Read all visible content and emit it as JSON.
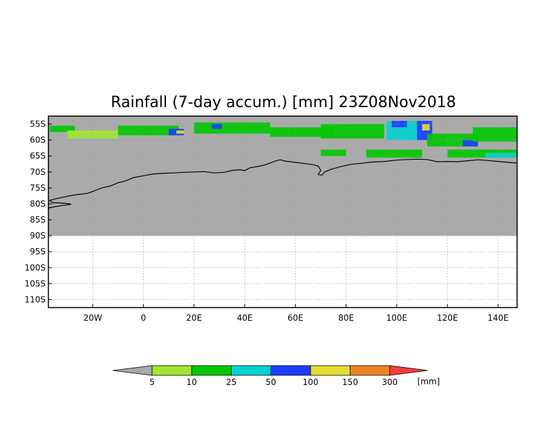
{
  "title": "Rainfall (7-day accum.) [mm] 23Z08Nov2018",
  "map": {
    "lon_range": [
      -37.5,
      147.5
    ],
    "lat_range": [
      -112.5,
      -52.5
    ],
    "data_lat_limit": -90,
    "lat_ticks": [
      {
        "lat": -55,
        "label": "55S"
      },
      {
        "lat": -60,
        "label": "60S"
      },
      {
        "lat": -65,
        "label": "65S"
      },
      {
        "lat": -70,
        "label": "70S"
      },
      {
        "lat": -75,
        "label": "75S"
      },
      {
        "lat": -80,
        "label": "80S"
      },
      {
        "lat": -85,
        "label": "85S"
      },
      {
        "lat": -90,
        "label": "90S"
      },
      {
        "lat": -95,
        "label": "95S"
      },
      {
        "lat": -100,
        "label": "100S"
      },
      {
        "lat": -105,
        "label": "105S"
      },
      {
        "lat": -110,
        "label": "110S"
      }
    ],
    "lon_ticks": [
      {
        "lon": -20,
        "label": "20W"
      },
      {
        "lon": 0,
        "label": "0"
      },
      {
        "lon": 20,
        "label": "20E"
      },
      {
        "lon": 40,
        "label": "40E"
      },
      {
        "lon": 60,
        "label": "60E"
      },
      {
        "lon": 80,
        "label": "80E"
      },
      {
        "lon": 100,
        "label": "100E"
      },
      {
        "lon": 120,
        "label": "120E"
      },
      {
        "lon": 140,
        "label": "140E"
      }
    ],
    "grid": true,
    "coastline": [
      [
        -37.5,
        -81.3
      ],
      [
        -35,
        -80.9
      ],
      [
        -32,
        -80.5
      ],
      [
        -30,
        -80.3
      ],
      [
        -28.5,
        -80.1
      ],
      [
        -30,
        -79.9
      ],
      [
        -33,
        -79.7
      ],
      [
        -36,
        -79.6
      ],
      [
        -37,
        -78.9
      ],
      [
        -34,
        -78.3
      ],
      [
        -31,
        -77.8
      ],
      [
        -28,
        -77.3
      ],
      [
        -25,
        -77
      ],
      [
        -22,
        -76.7
      ],
      [
        -19,
        -75.8
      ],
      [
        -16,
        -74.9
      ],
      [
        -13,
        -74.4
      ],
      [
        -10,
        -73.4
      ],
      [
        -7,
        -72.8
      ],
      [
        -4,
        -71.8
      ],
      [
        0,
        -71.2
      ],
      [
        4,
        -70.6
      ],
      [
        8,
        -70.4
      ],
      [
        12,
        -70.3
      ],
      [
        16,
        -70.1
      ],
      [
        20,
        -70
      ],
      [
        24,
        -69.9
      ],
      [
        28,
        -70.3
      ],
      [
        32,
        -70.1
      ],
      [
        35,
        -69.5
      ],
      [
        38,
        -69.3
      ],
      [
        40,
        -69.6
      ],
      [
        42,
        -68.7
      ],
      [
        45,
        -68.3
      ],
      [
        48,
        -67.8
      ],
      [
        50,
        -67.2
      ],
      [
        52,
        -66.6
      ],
      [
        54,
        -66.2
      ],
      [
        56,
        -66.6
      ],
      [
        58,
        -66.8
      ],
      [
        61,
        -67.1
      ],
      [
        64,
        -67.4
      ],
      [
        67,
        -67.7
      ],
      [
        69,
        -68.2
      ],
      [
        70,
        -69.5
      ],
      [
        69,
        -70.8
      ],
      [
        70.5,
        -71
      ],
      [
        71.5,
        -70
      ],
      [
        74,
        -69.2
      ],
      [
        78,
        -68.3
      ],
      [
        82,
        -67.6
      ],
      [
        86,
        -67.3
      ],
      [
        90,
        -66.9
      ],
      [
        95,
        -66.7
      ],
      [
        100,
        -66.3
      ],
      [
        104,
        -66.1
      ],
      [
        108,
        -66
      ],
      [
        112,
        -66.1
      ],
      [
        116,
        -66.8
      ],
      [
        120,
        -66.7
      ],
      [
        124,
        -66.8
      ],
      [
        128,
        -66.5
      ],
      [
        132,
        -66.2
      ],
      [
        136,
        -66.4
      ],
      [
        140,
        -66.7
      ],
      [
        144,
        -67
      ],
      [
        147.5,
        -67.2
      ]
    ],
    "coast_label_none": ""
  },
  "colors": {
    "land_mask": "#aaaaaa",
    "background": "#ffffff",
    "bins": [
      "#a0e632",
      "#00c800",
      "#00d2d2",
      "#1e3cff",
      "#e6dc32",
      "#f08228",
      "#fa3c3c"
    ],
    "below": "#aaaaaa"
  },
  "precip_cells": [
    {
      "lon": -37,
      "lat": -55.5,
      "lon_w": 10,
      "lat_h": 2,
      "bin": 1
    },
    {
      "lon": -30,
      "lat": -57,
      "lon_w": 20,
      "lat_h": 2.5,
      "bin": 0
    },
    {
      "lon": -10,
      "lat": -55.5,
      "lon_w": 24,
      "lat_h": 3,
      "bin": 1
    },
    {
      "lon": 10,
      "lat": -56.5,
      "lon_w": 6,
      "lat_h": 2,
      "bin": 3
    },
    {
      "lon": 13,
      "lat": -57,
      "lon_w": 3,
      "lat_h": 1,
      "bin": 4
    },
    {
      "lon": 20,
      "lat": -54.5,
      "lon_w": 30,
      "lat_h": 3.5,
      "bin": 1
    },
    {
      "lon": 27,
      "lat": -55,
      "lon_w": 4,
      "lat_h": 1.5,
      "bin": 3
    },
    {
      "lon": 50,
      "lat": -56,
      "lon_w": 25,
      "lat_h": 3,
      "bin": 1
    },
    {
      "lon": 70,
      "lat": -55,
      "lon_w": 25,
      "lat_h": 4.5,
      "bin": 1
    },
    {
      "lon": 96,
      "lat": -54,
      "lon_w": 16,
      "lat_h": 6,
      "bin": 2
    },
    {
      "lon": 98,
      "lat": -54,
      "lon_w": 6,
      "lat_h": 2,
      "bin": 3
    },
    {
      "lon": 108,
      "lat": -54,
      "lon_w": 6,
      "lat_h": 6,
      "bin": 3
    },
    {
      "lon": 110,
      "lat": -55,
      "lon_w": 3,
      "lat_h": 2,
      "bin": 4
    },
    {
      "lon": 112,
      "lat": -58,
      "lon_w": 20,
      "lat_h": 4,
      "bin": 1
    },
    {
      "lon": 126,
      "lat": -60,
      "lon_w": 6,
      "lat_h": 2,
      "bin": 3
    },
    {
      "lon": 130,
      "lat": -56,
      "lon_w": 17.5,
      "lat_h": 4.5,
      "bin": 1
    },
    {
      "lon": 70,
      "lat": -63,
      "lon_w": 10,
      "lat_h": 2,
      "bin": 1
    },
    {
      "lon": 88,
      "lat": -63,
      "lon_w": 22,
      "lat_h": 2.5,
      "bin": 1
    },
    {
      "lon": 120,
      "lat": -63,
      "lon_w": 27.5,
      "lat_h": 2.5,
      "bin": 1
    },
    {
      "lon": 135,
      "lat": -64,
      "lon_w": 12,
      "lat_h": 1.5,
      "bin": 2
    }
  ],
  "colorbar": {
    "labels": [
      "5",
      "10",
      "25",
      "50",
      "100",
      "150",
      "300"
    ],
    "unit": "[mm]"
  }
}
